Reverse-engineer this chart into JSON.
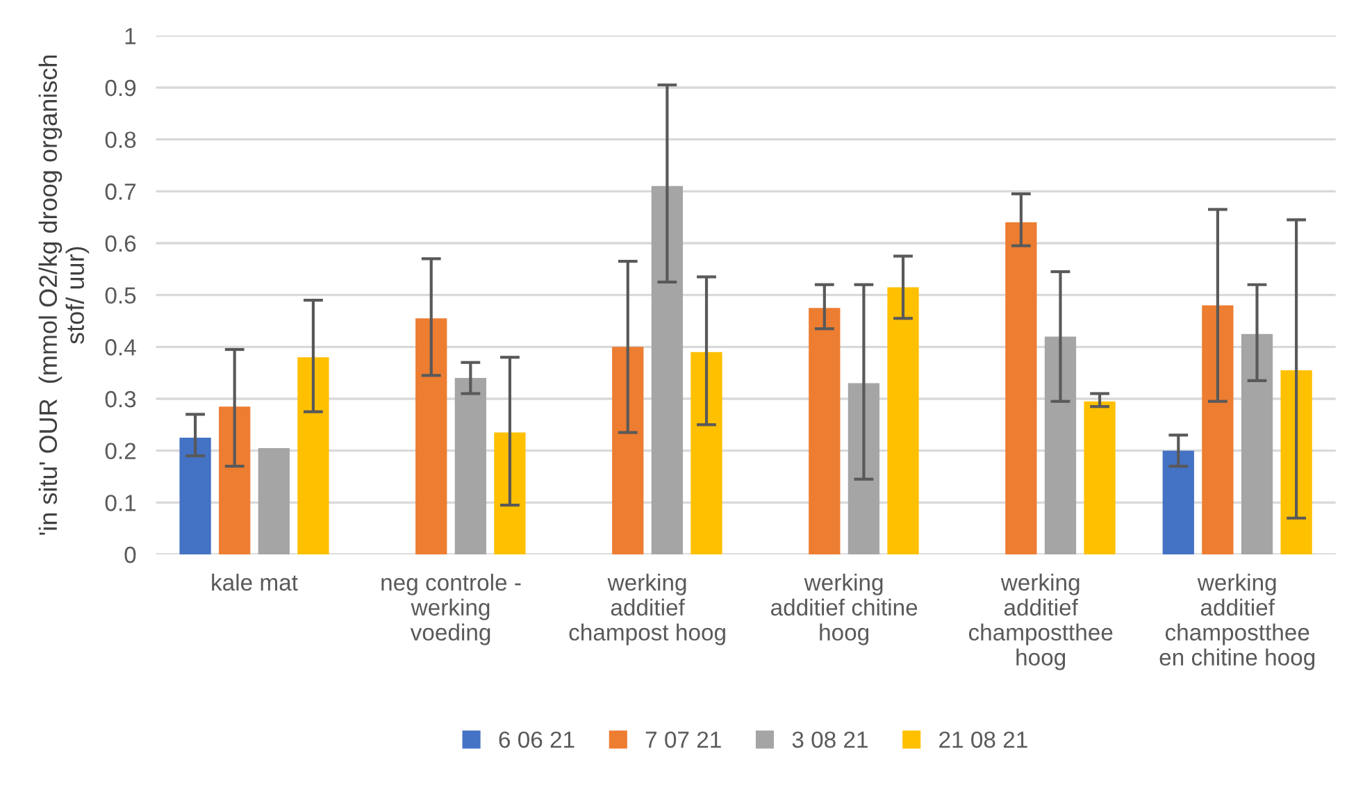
{
  "chart_data": {
    "type": "bar",
    "ylabel": "'in situ' OUR  (mmol O2/kg droog organisch\nstof/ uur)",
    "categories": [
      "kale mat",
      "neg controle -\nwerking\nvoeding",
      "werking\nadditief\nchampost hoog",
      "werking\nadditief chitine\nhoog",
      "werking\nadditief\nchampostthee\nhoog",
      "werking\nadditief\nchampostthee\nen chitine hoog"
    ],
    "series": [
      {
        "name": "6 06 21",
        "color": "#4472c4",
        "values": [
          0.225,
          null,
          null,
          null,
          null,
          0.2
        ],
        "errors": [
          [
            0.19,
            0.27
          ],
          null,
          null,
          null,
          null,
          [
            0.17,
            0.23
          ]
        ]
      },
      {
        "name": "7 07 21",
        "color": "#ed7d31",
        "values": [
          0.285,
          0.455,
          0.4,
          0.475,
          0.64,
          0.48
        ],
        "errors": [
          [
            0.17,
            0.395
          ],
          [
            0.345,
            0.57
          ],
          [
            0.235,
            0.565
          ],
          [
            0.435,
            0.52
          ],
          [
            0.595,
            0.695
          ],
          [
            0.295,
            0.665
          ]
        ]
      },
      {
        "name": "3 08 21",
        "color": "#a5a5a5",
        "values": [
          0.205,
          0.34,
          0.71,
          0.33,
          0.42,
          0.425
        ],
        "errors": [
          null,
          [
            0.31,
            0.37
          ],
          [
            0.525,
            0.905
          ],
          [
            0.145,
            0.52
          ],
          [
            0.295,
            0.545
          ],
          [
            0.335,
            0.52
          ]
        ]
      },
      {
        "name": "21 08 21",
        "color": "#ffc000",
        "values": [
          0.38,
          0.235,
          0.39,
          0.515,
          0.295,
          0.355
        ],
        "errors": [
          [
            0.275,
            0.49
          ],
          [
            0.095,
            0.38
          ],
          [
            0.25,
            0.535
          ],
          [
            0.455,
            0.575
          ],
          [
            0.285,
            0.31
          ],
          [
            0.07,
            0.645
          ]
        ]
      }
    ],
    "ylim": [
      0,
      1
    ],
    "yticks": [
      0,
      0.1,
      0.2,
      0.3,
      0.4,
      0.5,
      0.6,
      0.7,
      0.8,
      0.9,
      1
    ],
    "grid": "y",
    "legend": "bottom"
  }
}
